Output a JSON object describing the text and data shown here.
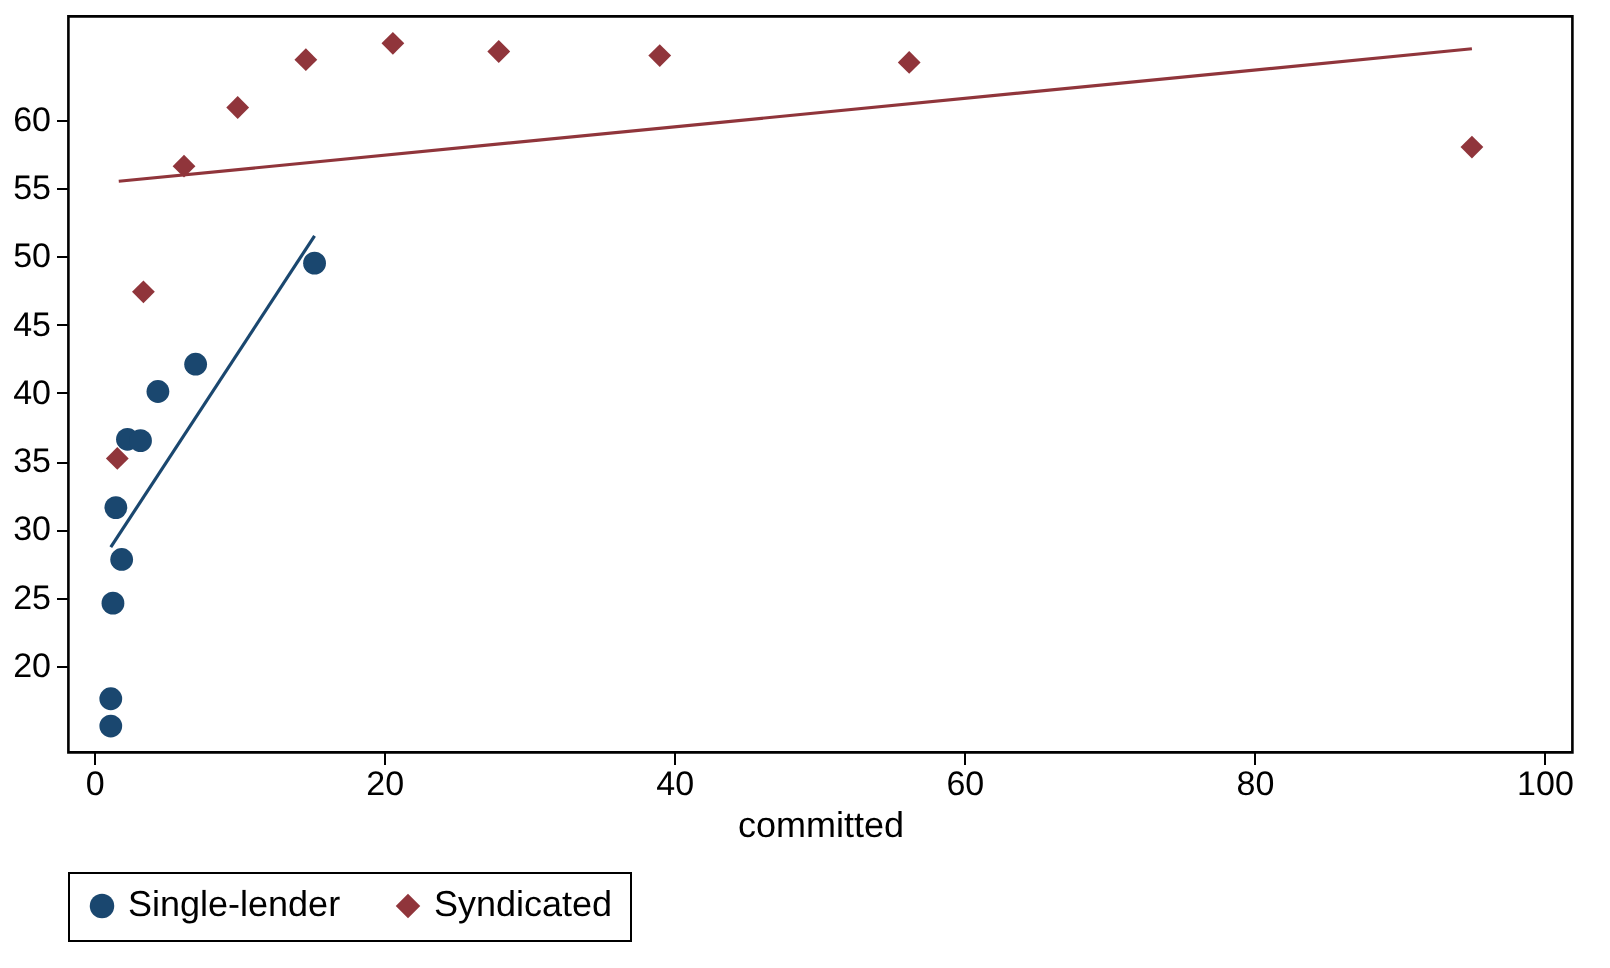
{
  "chart_data": {
    "type": "scatter",
    "xlabel": "committed",
    "xlim": [
      -1.8,
      101.9
    ],
    "ylim": [
      13.7,
      67.6
    ],
    "xticks": [
      0,
      20,
      40,
      60,
      80,
      100
    ],
    "yticks": [
      20,
      25,
      30,
      35,
      40,
      45,
      50,
      55,
      60
    ],
    "grid": false,
    "legend": "bottom",
    "series": [
      {
        "name": "Single-lender",
        "color": "#1a476f",
        "marker": "circle",
        "x": [
          1.15,
          1.15,
          1.3,
          1.9,
          1.5,
          2.3,
          3.2,
          4.4,
          7.0,
          15.2
        ],
        "values": [
          15.6,
          17.6,
          24.6,
          27.8,
          31.6,
          36.6,
          36.5,
          40.1,
          42.1,
          49.5
        ]
      },
      {
        "name": "Syndicated",
        "color": "#90353b",
        "marker": "diamond",
        "x": [
          1.6,
          3.4,
          6.2,
          9.9,
          14.6,
          20.6,
          27.9,
          39.0,
          56.2,
          95.0
        ],
        "values": [
          35.2,
          47.4,
          56.6,
          60.9,
          64.4,
          65.6,
          65.0,
          64.7,
          64.2,
          58.0
        ]
      },
      {
        "type": "line",
        "color": "#1a476f",
        "line_style": "solid",
        "x": [
          1.15,
          15.2
        ],
        "values": [
          28.7,
          51.5
        ]
      },
      {
        "type": "line",
        "color": "#90353b",
        "line_style": "solid",
        "x": [
          1.7,
          95.0
        ],
        "values": [
          55.5,
          65.2
        ]
      }
    ]
  }
}
